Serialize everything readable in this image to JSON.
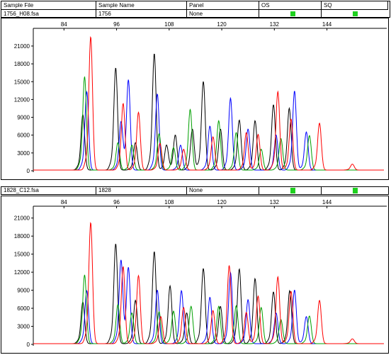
{
  "header": {
    "col_sample_file": "Sample File",
    "col_sample_name": "Sample Name",
    "col_panel": "Panel",
    "col_os": "OS",
    "col_sq": "SQ"
  },
  "colors": {
    "black": "#000000",
    "blue": "#0000ff",
    "green": "#00a000",
    "red": "#ff0000",
    "flag": "#1fd11f"
  },
  "chart_data": [
    {
      "type": "line",
      "sample_file": "1756_H08.fsa",
      "sample_name": "1756",
      "panel": "None",
      "os_flag": "green",
      "sq_flag": "green",
      "x_ticks": [
        84,
        96,
        108,
        120,
        132,
        144
      ],
      "y_ticks": [
        0,
        3000,
        6000,
        9000,
        12000,
        15000,
        18000,
        21000
      ],
      "xlim": [
        77,
        157
      ],
      "ylim": [
        0,
        23500
      ],
      "series": [
        {
          "color": "black",
          "peaks": [
            [
              88.3,
              9300
            ],
            [
              95.8,
              17200
            ],
            [
              100.3,
              4600
            ],
            [
              104.6,
              19600
            ],
            [
              107.4,
              4200
            ],
            [
              109.4,
              5900
            ],
            [
              113.3,
              6900
            ],
            [
              115.8,
              14900
            ],
            [
              119.7,
              6900
            ],
            [
              124.0,
              8400
            ],
            [
              127.6,
              8300
            ],
            [
              131.8,
              11000
            ],
            [
              135.4,
              10400
            ]
          ]
        },
        {
          "color": "blue",
          "peaks": [
            [
              89.2,
              13200
            ],
            [
              97.0,
              7900
            ],
            [
              98.7,
              15200
            ],
            [
              105.3,
              12800
            ],
            [
              110.6,
              4200
            ],
            [
              117.3,
              7400
            ],
            [
              122.0,
              12100
            ],
            [
              126.0,
              6900
            ],
            [
              132.4,
              5900
            ],
            [
              136.6,
              13300
            ],
            [
              139.3,
              6400
            ]
          ]
        },
        {
          "color": "green",
          "peaks": [
            [
              88.7,
              15700
            ],
            [
              96.3,
              4600
            ],
            [
              99.5,
              4200
            ],
            [
              105.7,
              6100
            ],
            [
              109.0,
              3800
            ],
            [
              112.8,
              10200
            ],
            [
              119.3,
              8300
            ],
            [
              123.3,
              6300
            ],
            [
              129.0,
              3500
            ],
            [
              133.5,
              5300
            ],
            [
              140.0,
              5800
            ]
          ]
        },
        {
          "color": "red",
          "peaks": [
            [
              90.1,
              22400
            ],
            [
              97.5,
              11200
            ],
            [
              101.0,
              9700
            ],
            [
              105.9,
              4500
            ],
            [
              111.3,
              3500
            ],
            [
              118.0,
              5600
            ],
            [
              125.6,
              6300
            ],
            [
              128.3,
              6000
            ],
            [
              132.8,
              13200
            ],
            [
              135.8,
              8600
            ],
            [
              142.3,
              7900
            ],
            [
              149.8,
              1000
            ]
          ]
        }
      ]
    },
    {
      "type": "line",
      "sample_file": "1828_C12.fsa",
      "sample_name": "1828",
      "panel": "None",
      "os_flag": "green",
      "sq_flag": "green",
      "x_ticks": [
        84,
        96,
        108,
        120,
        132,
        144
      ],
      "y_ticks": [
        0,
        3000,
        6000,
        9000,
        12000,
        15000,
        18000,
        21000
      ],
      "xlim": [
        77,
        157
      ],
      "ylim": [
        0,
        22500
      ],
      "series": [
        {
          "color": "black",
          "peaks": [
            [
              88.3,
              6900
            ],
            [
              95.8,
              16600
            ],
            [
              100.3,
              7200
            ],
            [
              104.6,
              15300
            ],
            [
              108.2,
              9600
            ],
            [
              112.0,
              5100
            ],
            [
              115.8,
              12500
            ],
            [
              119.7,
              6200
            ],
            [
              124.0,
              12400
            ],
            [
              127.6,
              10800
            ],
            [
              131.8,
              8600
            ],
            [
              135.5,
              8800
            ]
          ]
        },
        {
          "color": "blue",
          "peaks": [
            [
              89.2,
              8800
            ],
            [
              97.0,
              13700
            ],
            [
              98.7,
              12700
            ],
            [
              105.3,
              8900
            ],
            [
              110.8,
              8800
            ],
            [
              117.3,
              7700
            ],
            [
              122.0,
              11800
            ],
            [
              126.0,
              7300
            ],
            [
              132.4,
              5100
            ],
            [
              136.6,
              8900
            ],
            [
              139.3,
              4500
            ]
          ]
        },
        {
          "color": "green",
          "peaks": [
            [
              88.7,
              11400
            ],
            [
              96.3,
              6500
            ],
            [
              99.5,
              5100
            ],
            [
              105.7,
              5300
            ],
            [
              109.0,
              5400
            ],
            [
              113.0,
              6200
            ],
            [
              119.3,
              6200
            ],
            [
              123.3,
              6300
            ],
            [
              129.0,
              6000
            ],
            [
              133.5,
              4000
            ],
            [
              140.0,
              4600
            ]
          ]
        },
        {
          "color": "red",
          "peaks": [
            [
              90.1,
              20100
            ],
            [
              97.5,
              12800
            ],
            [
              101.0,
              11300
            ],
            [
              106.1,
              4500
            ],
            [
              111.3,
              6000
            ],
            [
              118.0,
              5500
            ],
            [
              121.7,
              13000
            ],
            [
              125.6,
              5200
            ],
            [
              128.3,
              7900
            ],
            [
              132.8,
              11100
            ],
            [
              135.8,
              8700
            ],
            [
              142.3,
              7200
            ],
            [
              149.8,
              800
            ]
          ]
        }
      ]
    }
  ]
}
